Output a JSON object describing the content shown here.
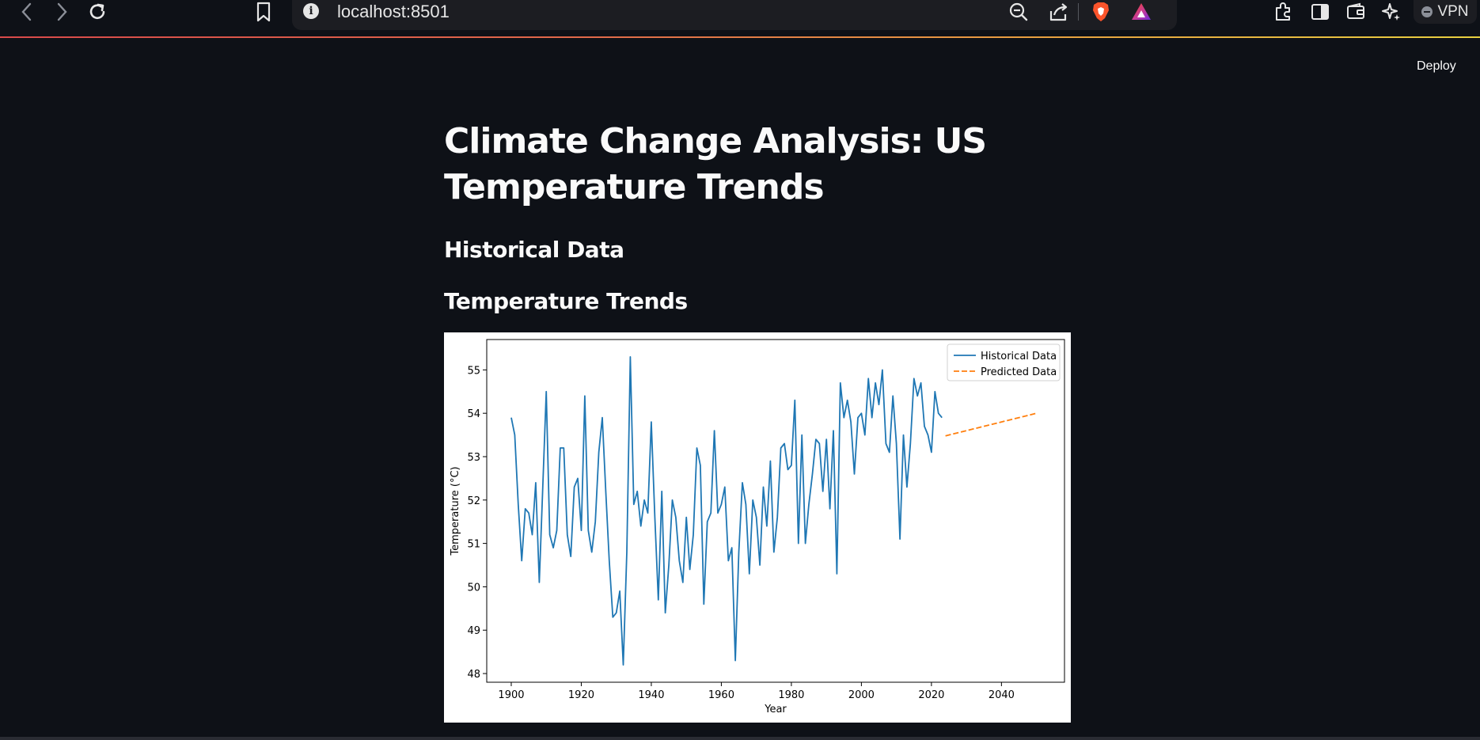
{
  "browser": {
    "url": "localhost:8501",
    "vpn_label": "VPN",
    "icons": [
      "back-icon",
      "forward-icon",
      "reload-icon",
      "bookmark-icon",
      "info-icon",
      "zoom-out-icon",
      "share-icon",
      "brave-shield-icon",
      "brave-rewards-icon",
      "extensions-icon",
      "sidebar-icon",
      "wallet-icon",
      "leo-ai-icon"
    ]
  },
  "app": {
    "deploy_label": "Deploy",
    "title": "Climate Change Analysis: US Temperature Trends",
    "section_historical": "Historical Data",
    "section_trends": "Temperature Trends"
  },
  "chart_data": {
    "type": "line",
    "xlabel": "Year",
    "ylabel": "Temperature (°C)",
    "xlim": [
      1893,
      2058
    ],
    "ylim": [
      47.8,
      55.7
    ],
    "xticks": [
      1900,
      1920,
      1940,
      1960,
      1980,
      2000,
      2020,
      2040
    ],
    "yticks": [
      48,
      49,
      50,
      51,
      52,
      53,
      54,
      55
    ],
    "grid": false,
    "legend_position": "top-right",
    "series": [
      {
        "name": "Historical Data",
        "color": "#1f77b4",
        "style": "solid",
        "x": [
          1900,
          1901,
          1902,
          1903,
          1904,
          1905,
          1906,
          1907,
          1908,
          1909,
          1910,
          1911,
          1912,
          1913,
          1914,
          1915,
          1916,
          1917,
          1918,
          1919,
          1920,
          1921,
          1922,
          1923,
          1924,
          1925,
          1926,
          1927,
          1928,
          1929,
          1930,
          1931,
          1932,
          1933,
          1934,
          1935,
          1936,
          1937,
          1938,
          1939,
          1940,
          1941,
          1942,
          1943,
          1944,
          1945,
          1946,
          1947,
          1948,
          1949,
          1950,
          1951,
          1952,
          1953,
          1954,
          1955,
          1956,
          1957,
          1958,
          1959,
          1960,
          1961,
          1962,
          1963,
          1964,
          1965,
          1966,
          1967,
          1968,
          1969,
          1970,
          1971,
          1972,
          1973,
          1974,
          1975,
          1976,
          1977,
          1978,
          1979,
          1980,
          1981,
          1982,
          1983,
          1984,
          1985,
          1986,
          1987,
          1988,
          1989,
          1990,
          1991,
          1992,
          1993,
          1994,
          1995,
          1996,
          1997,
          1998,
          1999,
          2000,
          2001,
          2002,
          2003,
          2004,
          2005,
          2006,
          2007,
          2008,
          2009,
          2010,
          2011,
          2012,
          2013,
          2014,
          2015,
          2016,
          2017,
          2018,
          2019,
          2020,
          2021,
          2022,
          2023
        ],
        "y": [
          53.9,
          53.5,
          51.9,
          50.6,
          51.8,
          51.7,
          51.2,
          52.4,
          50.1,
          52.3,
          54.5,
          51.2,
          50.9,
          51.3,
          53.2,
          53.2,
          51.2,
          50.7,
          52.3,
          52.5,
          51.3,
          54.4,
          51.3,
          50.8,
          51.5,
          53.1,
          53.9,
          52.2,
          50.6,
          49.3,
          49.4,
          49.9,
          48.2,
          50.8,
          55.3,
          51.9,
          52.2,
          51.4,
          52.0,
          51.7,
          53.8,
          51.6,
          49.7,
          52.2,
          49.4,
          50.5,
          52.0,
          51.6,
          50.6,
          50.1,
          51.6,
          50.4,
          51.2,
          53.2,
          52.8,
          49.6,
          51.5,
          51.7,
          53.6,
          51.7,
          51.9,
          52.3,
          50.6,
          50.9,
          48.3,
          50.8,
          52.4,
          51.9,
          50.3,
          52.0,
          51.6,
          50.5,
          52.3,
          51.4,
          52.9,
          50.8,
          51.6,
          53.2,
          53.3,
          52.7,
          52.8,
          54.3,
          51.0,
          53.5,
          51.0,
          51.9,
          52.6,
          53.4,
          53.3,
          52.2,
          53.4,
          51.8,
          53.6,
          50.3,
          54.7,
          53.9,
          54.3,
          53.8,
          52.6,
          53.9,
          54.0,
          53.5,
          54.8,
          53.9,
          54.7,
          54.2,
          55.0,
          53.3,
          53.1,
          54.4,
          53.3,
          51.1,
          53.5,
          52.3,
          53.3,
          54.8,
          54.4,
          54.7,
          53.7,
          53.5,
          53.1,
          54.5,
          54.0,
          53.9
        ]
      },
      {
        "name": "Predicted Data",
        "color": "#ff7f0e",
        "style": "dashed",
        "x": [
          2024,
          2050
        ],
        "y": [
          53.48,
          54.0
        ]
      }
    ]
  }
}
